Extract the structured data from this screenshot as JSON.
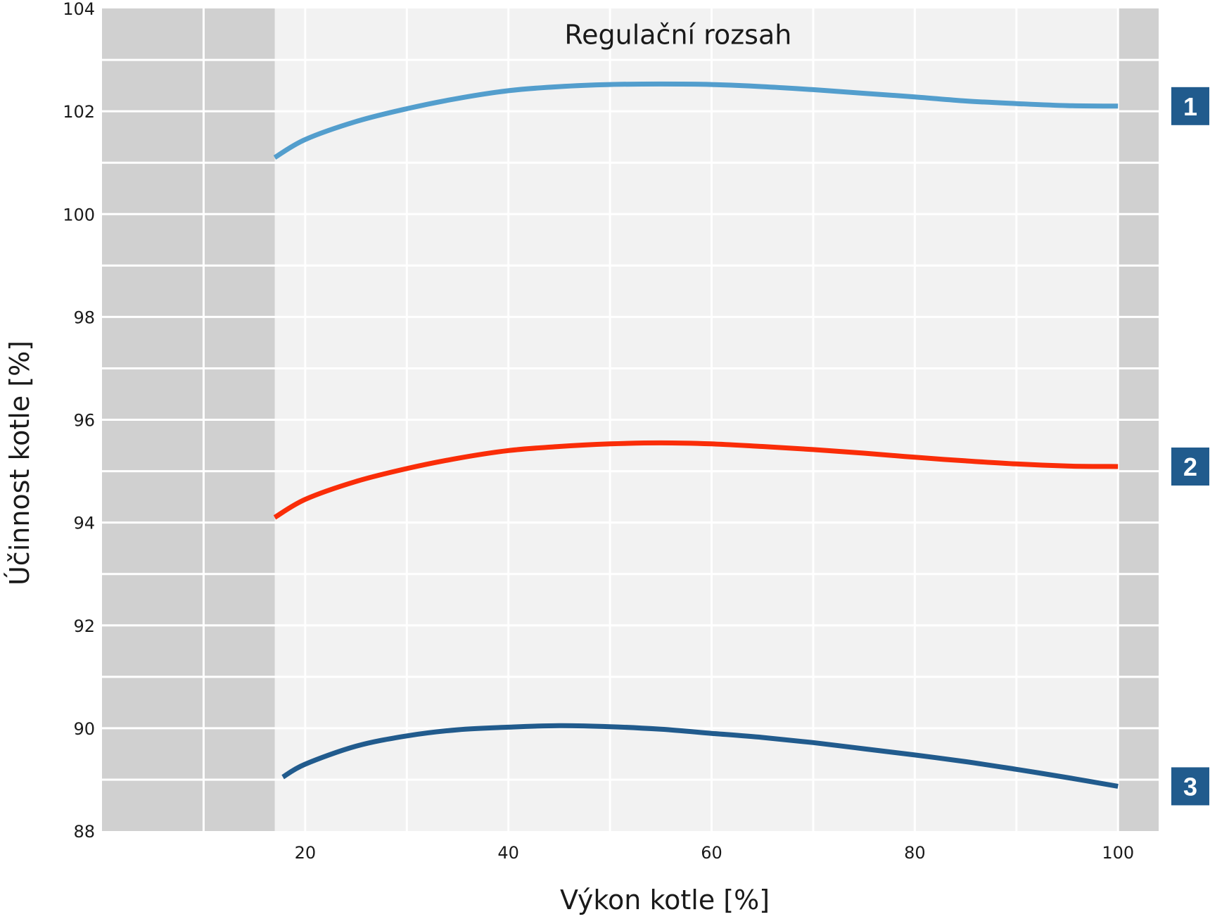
{
  "chart_data": {
    "type": "line",
    "xlabel": "Výkon kotle [%]",
    "ylabel": "Účinnost kotle  [%]",
    "xlim": [
      0,
      104
    ],
    "ylim": [
      88,
      104
    ],
    "x_ticks": [
      20,
      40,
      60,
      80,
      100
    ],
    "y_ticks": [
      88,
      90,
      92,
      94,
      96,
      98,
      100,
      102,
      104
    ],
    "grid": true,
    "shaded_regions": [
      {
        "x_range": [
          0,
          17
        ],
        "meaning": "outside control range"
      },
      {
        "x_range": [
          100,
          104
        ],
        "meaning": "outside control range"
      }
    ],
    "annotations": [
      {
        "text": "Regulační rozsah",
        "x": 56.7,
        "y": 103.5
      }
    ],
    "series": [
      {
        "name": "1",
        "color": "#539ecd",
        "x": [
          17,
          20,
          25,
          30,
          35,
          40,
          45,
          50,
          55,
          60,
          65,
          70,
          75,
          80,
          85,
          90,
          95,
          100
        ],
        "values": [
          101.1,
          101.45,
          101.8,
          102.05,
          102.25,
          102.4,
          102.48,
          102.52,
          102.53,
          102.52,
          102.48,
          102.42,
          102.35,
          102.28,
          102.2,
          102.15,
          102.11,
          102.1
        ]
      },
      {
        "name": "2",
        "color": "#fa2d08",
        "x": [
          17,
          20,
          25,
          30,
          35,
          40,
          45,
          50,
          55,
          60,
          65,
          70,
          75,
          80,
          85,
          90,
          95,
          100
        ],
        "values": [
          94.1,
          94.45,
          94.8,
          95.05,
          95.25,
          95.4,
          95.48,
          95.53,
          95.55,
          95.53,
          95.48,
          95.42,
          95.35,
          95.27,
          95.2,
          95.14,
          95.1,
          95.09
        ]
      },
      {
        "name": "3",
        "color": "#215b8d",
        "x": [
          17.8,
          20,
          25,
          30,
          35,
          40,
          45,
          50,
          55,
          60,
          65,
          70,
          75,
          80,
          85,
          90,
          95,
          100
        ],
        "values": [
          89.05,
          89.3,
          89.65,
          89.85,
          89.97,
          90.02,
          90.05,
          90.03,
          89.98,
          89.9,
          89.82,
          89.72,
          89.6,
          89.48,
          89.35,
          89.2,
          89.04,
          88.87
        ]
      }
    ]
  }
}
